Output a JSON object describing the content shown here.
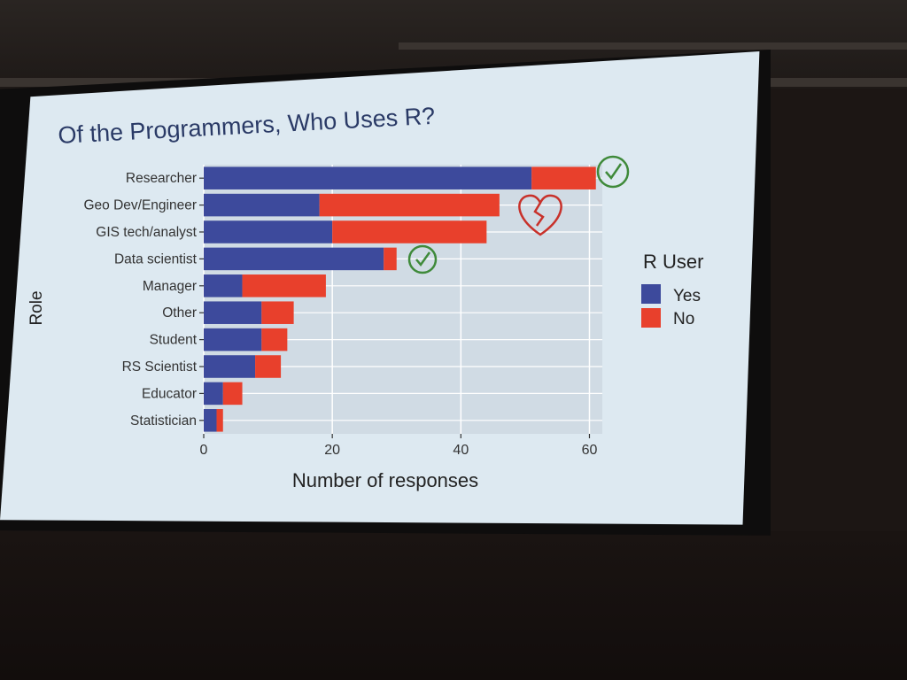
{
  "slide": {
    "title": "Of the Programmers, Who Uses R?"
  },
  "annotations": {
    "researcher_mark": "check-icon",
    "geo_dev_mark": "broken-heart-icon",
    "data_scientist_mark": "check-icon"
  },
  "colors": {
    "yes": "#3d4a9c",
    "no": "#e8402c",
    "panel": "#d0dbe4",
    "grid": "#ffffff",
    "check": "#3f8a3a",
    "heart": "#c8312a"
  },
  "chart_data": {
    "type": "bar",
    "orientation": "horizontal",
    "stacked": true,
    "title": "Of the Programmers, Who Uses R?",
    "xlabel": "Number of responses",
    "ylabel": "Role",
    "categories": [
      "Researcher",
      "Geo Dev/Engineer",
      "GIS tech/analyst",
      "Data scientist",
      "Manager",
      "Other",
      "Student",
      "RS Scientist",
      "Educator",
      "Statistician"
    ],
    "series": [
      {
        "name": "Yes",
        "values": [
          51,
          18,
          20,
          28,
          6,
          9,
          9,
          8,
          3,
          2
        ]
      },
      {
        "name": "No",
        "values": [
          10,
          28,
          24,
          2,
          13,
          5,
          4,
          4,
          3,
          1
        ]
      }
    ],
    "xlim": [
      0,
      62
    ],
    "xticks": [
      "0",
      "20",
      "40",
      "60"
    ],
    "xtick_values": [
      0,
      20,
      40,
      60
    ],
    "legend": {
      "title": "R User",
      "entries": [
        "Yes",
        "No"
      ],
      "placement": "right"
    },
    "grid": true
  }
}
